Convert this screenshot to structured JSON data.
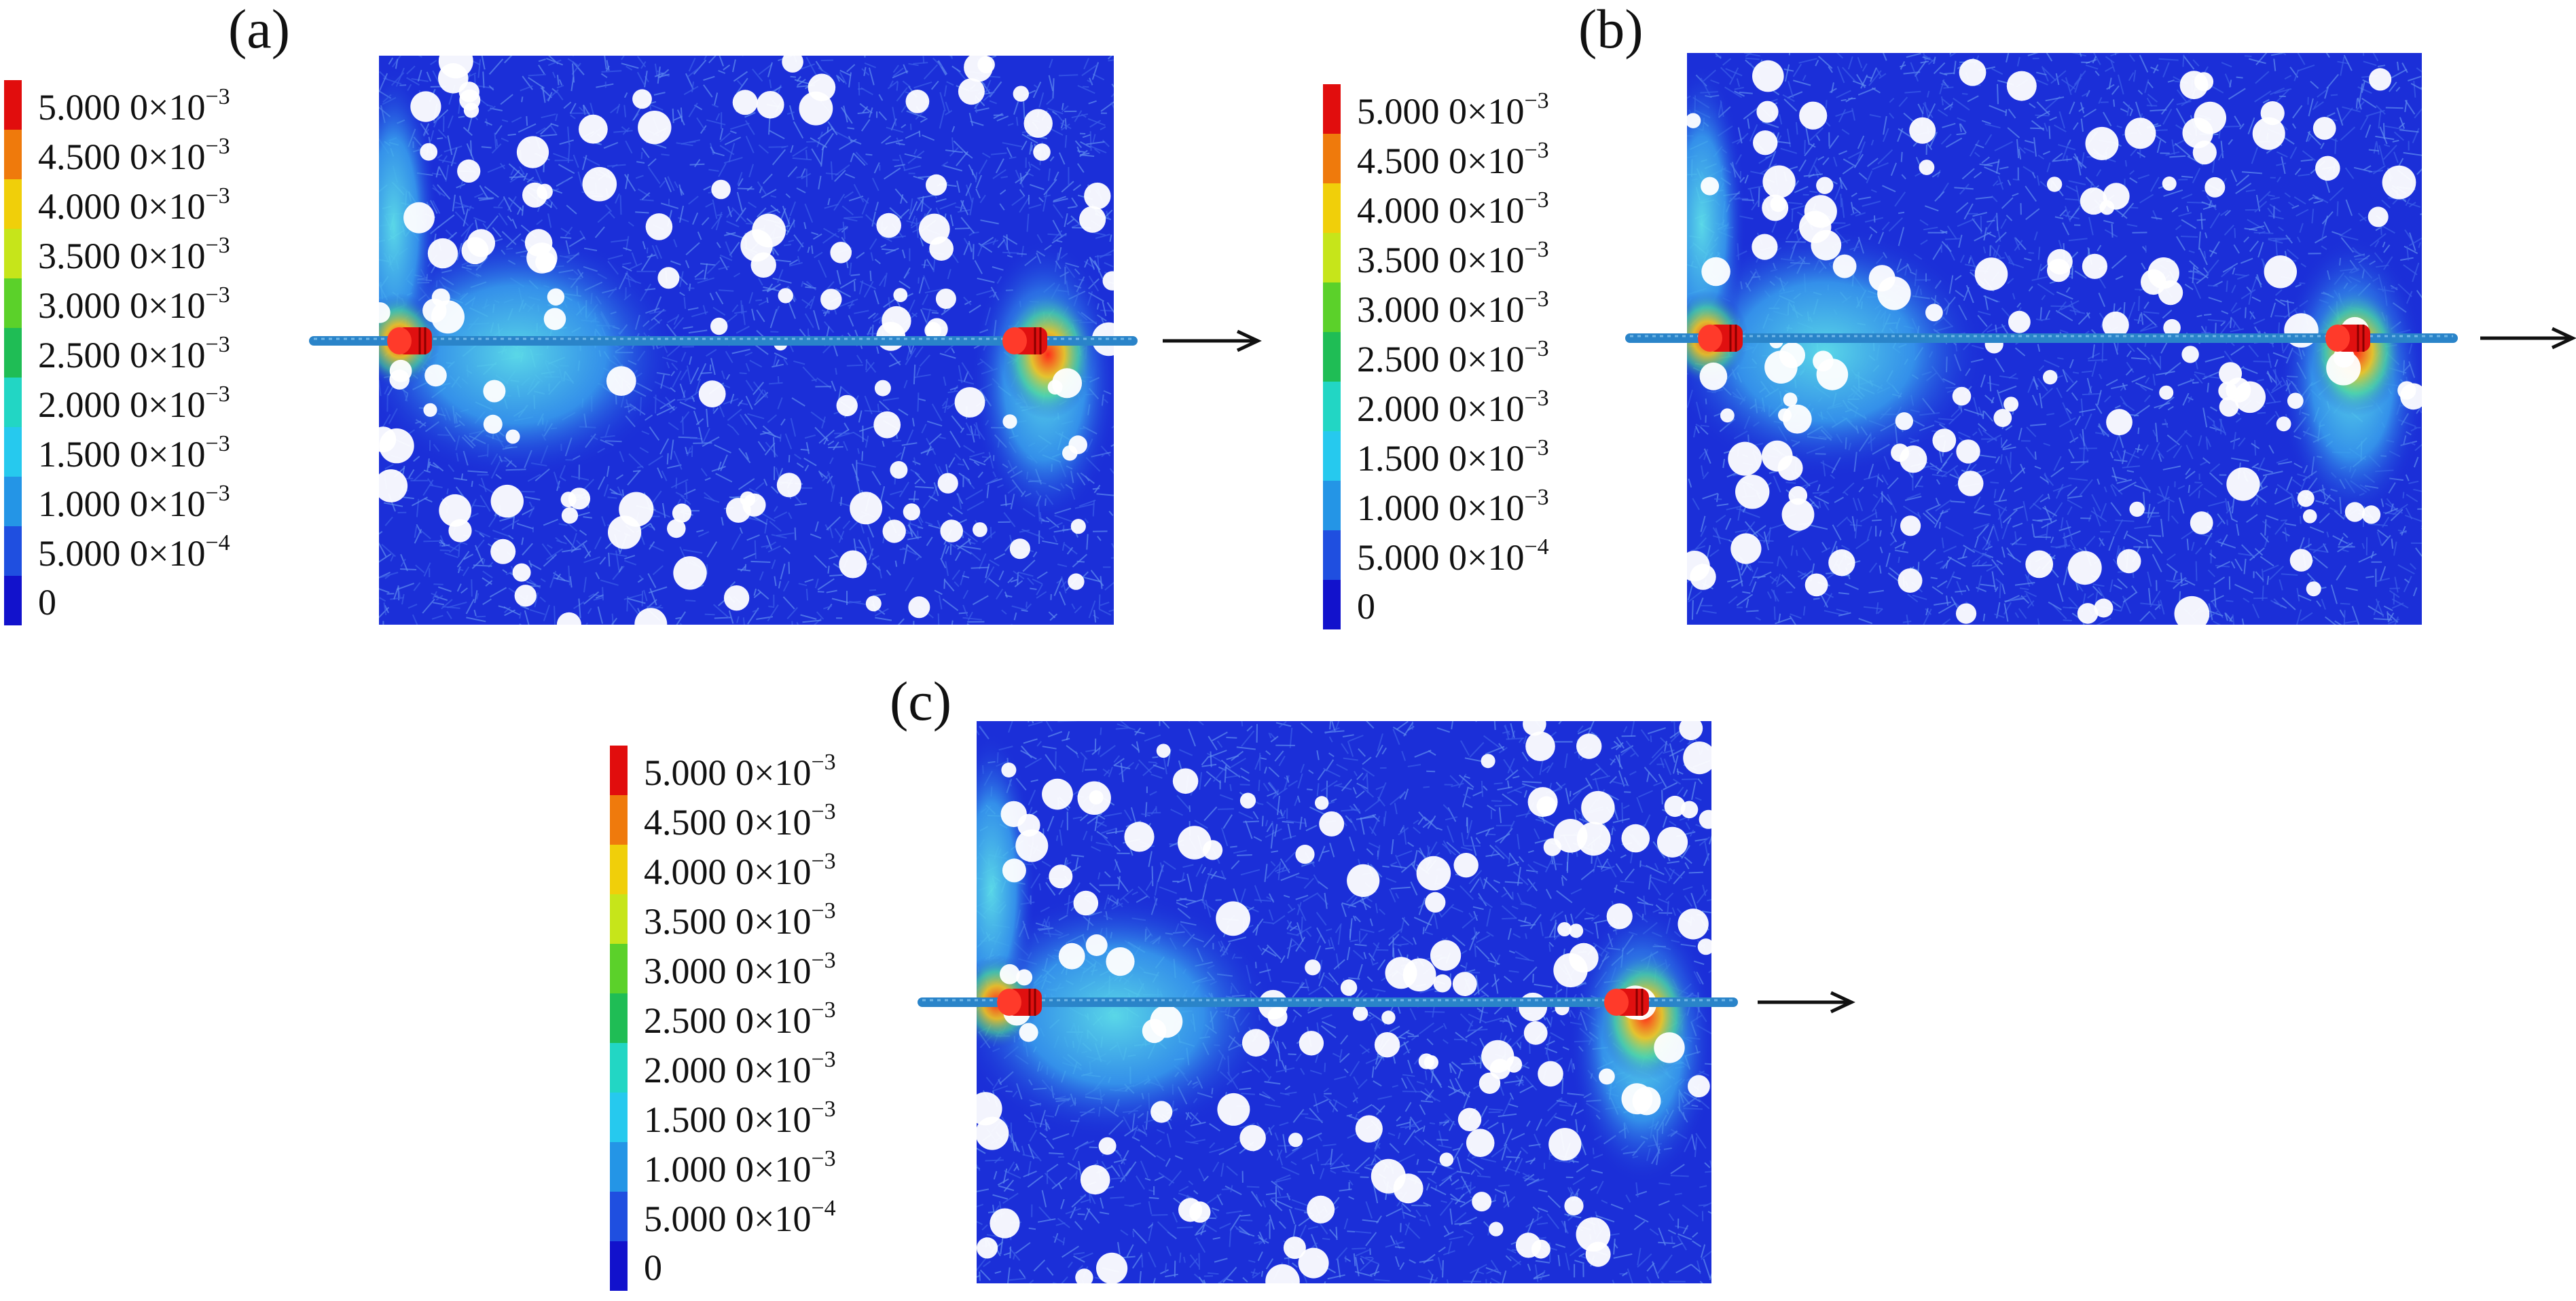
{
  "panels": [
    {
      "label": "(a)"
    },
    {
      "label": "(b)"
    },
    {
      "label": "(c)"
    }
  ],
  "legend": {
    "colors": [
      "#e10d0d",
      "#ef7a0c",
      "#f0cf0a",
      "#c6e51a",
      "#5bd12a",
      "#1fbd55",
      "#22d6c4",
      "#26c9ee",
      "#2495e6",
      "#1f4fe0",
      "#1212cc"
    ],
    "entries": [
      {
        "mantissa": "5.000 0",
        "exp": "-3"
      },
      {
        "mantissa": "4.500 0",
        "exp": "-3"
      },
      {
        "mantissa": "4.000 0",
        "exp": "-3"
      },
      {
        "mantissa": "3.500 0",
        "exp": "-3"
      },
      {
        "mantissa": "3.000 0",
        "exp": "-3"
      },
      {
        "mantissa": "2.500 0",
        "exp": "-3"
      },
      {
        "mantissa": "2.000 0",
        "exp": "-3"
      },
      {
        "mantissa": "1.500 0",
        "exp": "-3"
      },
      {
        "mantissa": "1.000 0",
        "exp": "-3"
      },
      {
        "mantissa": "5.000 0",
        "exp": "-4"
      },
      {
        "mantissa": "0",
        "exp": ""
      }
    ]
  },
  "colors": {
    "field_base": "#1b2fd8",
    "field_light": "#5f8df0",
    "particle": "#ffffff",
    "rod": "#2a84c9",
    "probe": "#e01010"
  }
}
